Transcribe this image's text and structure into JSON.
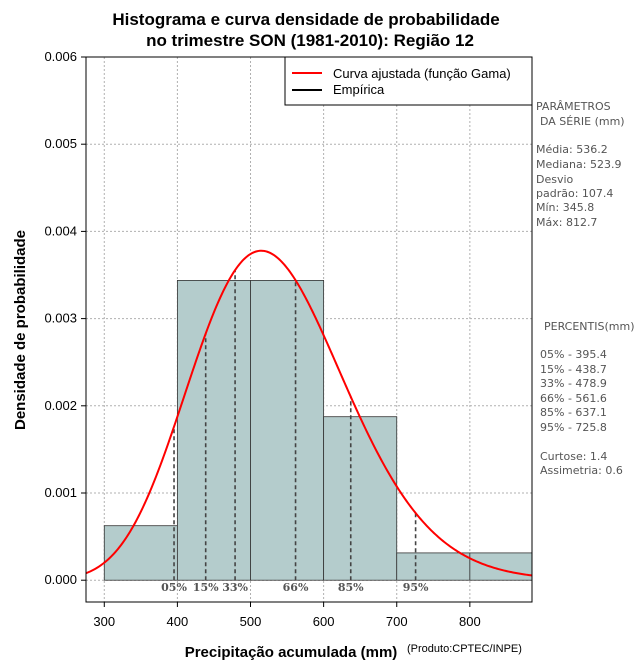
{
  "chart_data": {
    "type": "bar",
    "title_line1": "Histograma e curva densidade de probabilidade",
    "title_line2": "no trimestre SON (1981-2010): Região 12",
    "xlabel": "Precipitação acumulada (mm)",
    "ylabel": "Densidade de probabilidade",
    "credit": "(Produto:CPTEC/INPE)",
    "xlim": [
      275,
      885
    ],
    "ylim": [
      -0.00025,
      0.006
    ],
    "x_ticks": [
      300,
      400,
      500,
      600,
      700,
      800
    ],
    "y_ticks": [
      "0.000",
      "0.001",
      "0.002",
      "0.003",
      "0.004",
      "0.005",
      "0.006"
    ],
    "y_tick_values": [
      0,
      0.001,
      0.002,
      0.003,
      0.004,
      0.005,
      0.006
    ],
    "bins": [
      {
        "from": 300,
        "to": 400,
        "density": 0.000625
      },
      {
        "from": 400,
        "to": 500,
        "density": 0.003438
      },
      {
        "from": 500,
        "to": 600,
        "density": 0.003438
      },
      {
        "from": 600,
        "to": 700,
        "density": 0.001875
      },
      {
        "from": 700,
        "to": 800,
        "density": 0.000313
      },
      {
        "from": 800,
        "to": 900,
        "density": 0.000313
      }
    ],
    "gamma_fit": {
      "mean": 536.2,
      "sd": 107.4
    },
    "legend": [
      {
        "label": "Curva ajustada (função Gama)",
        "color": "#ff0000"
      },
      {
        "label": "Empírica",
        "color": "#000000"
      }
    ],
    "percentile_markers": [
      {
        "label": "05%",
        "value": 395.4
      },
      {
        "label": "15%",
        "value": 438.7
      },
      {
        "label": "33%",
        "value": 478.9
      },
      {
        "label": "66%",
        "value": 561.6
      },
      {
        "label": "85%",
        "value": 637.1
      },
      {
        "label": "95%",
        "value": 725.8
      }
    ],
    "bar_color": "#b4cccc",
    "curve_color": "#ff0000"
  },
  "side_panel": {
    "params_title_1": "PARÂMETROS",
    "params_title_2": "DA SÉRIE (mm)",
    "media": "Média:  536.2",
    "mediana": "Mediana:  523.9",
    "desvio_1": "Desvio",
    "desvio_2": "padrão:  107.4",
    "min": "Mín:  345.8",
    "max": "Máx:  812.7",
    "percentis_title": "PERCENTIS(mm)",
    "p05": "05% -  395.4",
    "p15": "15% -  438.7",
    "p33": "33% -  478.9",
    "p66": "66% -  561.6",
    "p85": "85% -  637.1",
    "p95": "95% -  725.8",
    "curtose": "Curtose:  1.4",
    "assimetria": "Assimetria:  0.6"
  }
}
